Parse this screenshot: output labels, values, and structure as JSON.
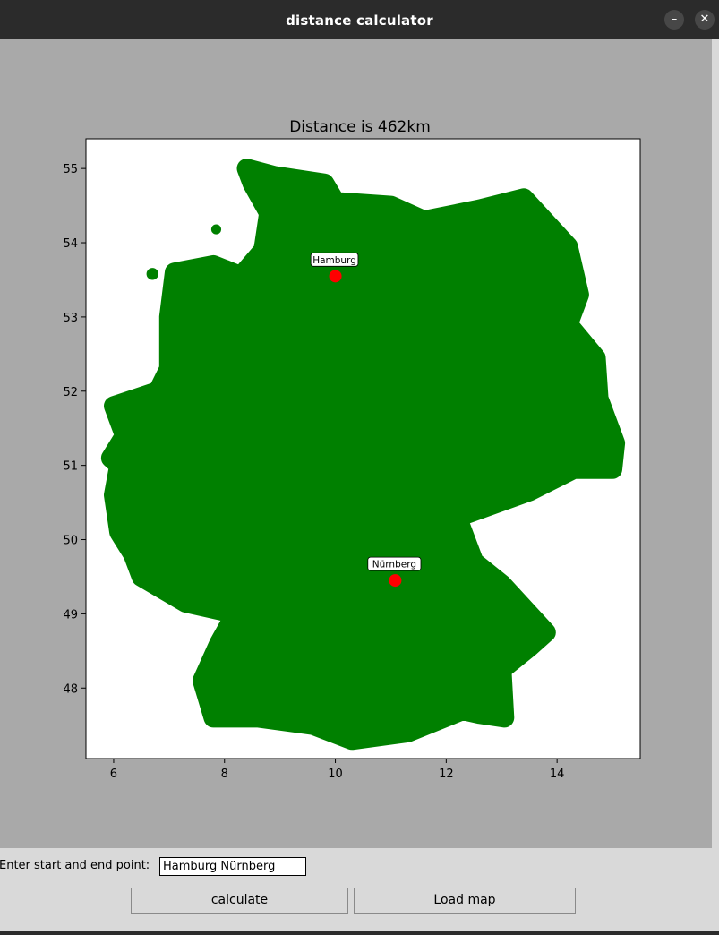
{
  "window": {
    "title": "distance calculator",
    "minimize_glyph": "–",
    "close_glyph": "✕"
  },
  "chart_data": {
    "type": "scatter",
    "title": "Distance is 462km",
    "xlabel": "",
    "ylabel": "",
    "xlim": [
      5.5,
      15.5
    ],
    "ylim": [
      47.05,
      55.4
    ],
    "xticks": [
      6,
      8,
      10,
      12,
      14
    ],
    "yticks": [
      48,
      49,
      50,
      51,
      52,
      53,
      54,
      55
    ],
    "grid": false,
    "map_color": "#008000",
    "marker_color": "#ff0000",
    "points": [
      {
        "label": "Hamburg",
        "x": 10.0,
        "y": 53.55
      },
      {
        "label": "Nürnberg",
        "x": 11.08,
        "y": 49.45
      }
    ],
    "map_outline": [
      [
        8.4,
        55.0
      ],
      [
        8.9,
        54.9
      ],
      [
        9.8,
        54.8
      ],
      [
        10.0,
        54.55
      ],
      [
        11.0,
        54.5
      ],
      [
        11.6,
        54.3
      ],
      [
        12.6,
        54.45
      ],
      [
        13.4,
        54.6
      ],
      [
        14.2,
        53.95
      ],
      [
        14.4,
        53.3
      ],
      [
        14.2,
        52.9
      ],
      [
        14.7,
        52.45
      ],
      [
        14.75,
        51.9
      ],
      [
        15.05,
        51.3
      ],
      [
        15.0,
        50.95
      ],
      [
        14.3,
        50.95
      ],
      [
        13.5,
        50.65
      ],
      [
        12.2,
        50.3
      ],
      [
        12.5,
        49.7
      ],
      [
        13.0,
        49.4
      ],
      [
        13.8,
        48.75
      ],
      [
        13.5,
        48.55
      ],
      [
        13.0,
        48.25
      ],
      [
        13.05,
        47.6
      ],
      [
        12.6,
        47.65
      ],
      [
        12.3,
        47.7
      ],
      [
        11.3,
        47.4
      ],
      [
        10.3,
        47.3
      ],
      [
        9.6,
        47.5
      ],
      [
        8.6,
        47.6
      ],
      [
        7.8,
        47.6
      ],
      [
        7.6,
        48.1
      ],
      [
        7.9,
        48.6
      ],
      [
        8.2,
        49.0
      ],
      [
        7.3,
        49.15
      ],
      [
        6.5,
        49.5
      ],
      [
        6.35,
        49.8
      ],
      [
        6.1,
        50.1
      ],
      [
        6.0,
        50.6
      ],
      [
        6.1,
        51.0
      ],
      [
        5.95,
        51.1
      ],
      [
        6.2,
        51.4
      ],
      [
        6.0,
        51.8
      ],
      [
        6.8,
        52.0
      ],
      [
        7.0,
        52.3
      ],
      [
        7.0,
        53.0
      ],
      [
        7.1,
        53.6
      ],
      [
        7.8,
        53.7
      ],
      [
        8.3,
        53.55
      ],
      [
        8.7,
        53.9
      ],
      [
        8.8,
        54.4
      ],
      [
        8.5,
        54.8
      ]
    ],
    "map_islands": [
      {
        "x": 6.7,
        "y": 53.58,
        "r": 0.18
      },
      {
        "x": 7.85,
        "y": 54.18,
        "r": 0.15
      },
      {
        "x": 11.25,
        "y": 54.42,
        "r": 0.14
      }
    ]
  },
  "controls": {
    "prompt_label": "Enter start and end point:",
    "route_input_value": "Hamburg Nürnberg",
    "calculate_label": "calculate",
    "load_map_label": "Load map"
  }
}
